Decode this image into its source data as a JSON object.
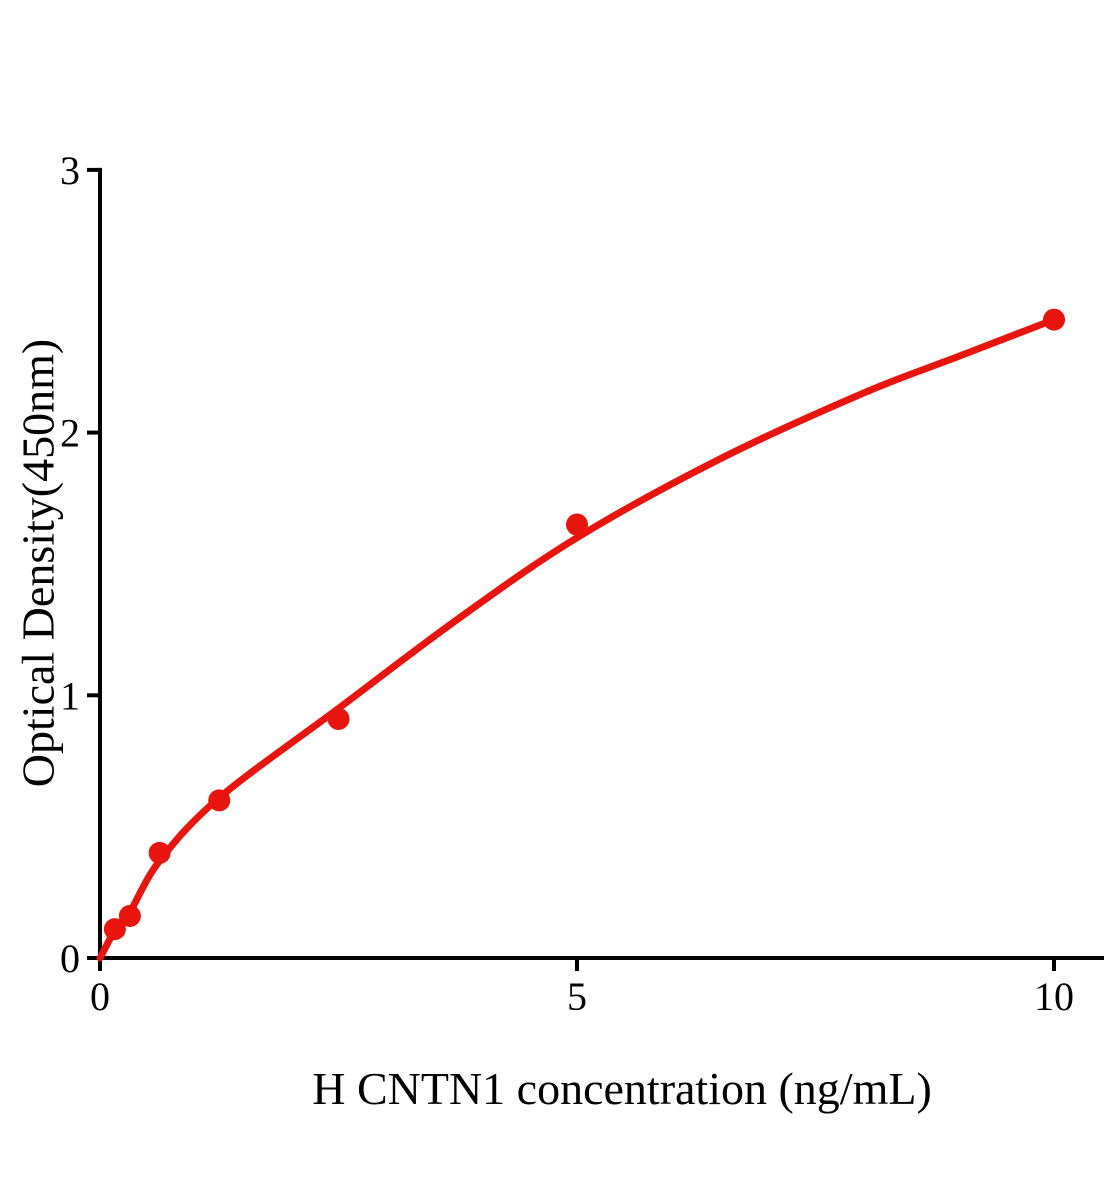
{
  "figure": {
    "background_color": "#ffffff",
    "text_color": "#000000"
  },
  "chart_data": {
    "type": "scatter",
    "title": "",
    "xlabel": "H CNTN1 concentration (ng/mL)",
    "ylabel": "Optical Density(450nm)",
    "xlim": [
      0,
      10.55
    ],
    "ylim": [
      0,
      3
    ],
    "x_ticks": [
      0,
      5,
      10
    ],
    "y_ticks": [
      0,
      1,
      2,
      3
    ],
    "grid": false,
    "legend_position": "none",
    "axis_color": "#000000",
    "accent_color": "#e8150e",
    "series": [
      {
        "name": "standard-points",
        "type": "scatter",
        "color": "#e8150e",
        "x": [
          0.156,
          0.313,
          0.625,
          1.25,
          2.5,
          5,
          10
        ],
        "y": [
          0.11,
          0.16,
          0.4,
          0.6,
          0.91,
          1.65,
          2.43
        ]
      },
      {
        "name": "fitted-curve",
        "type": "line",
        "color": "#e8150e",
        "x": [
          0,
          0.156,
          0.313,
          0.625,
          1.25,
          2.5,
          3.75,
          5,
          6.5,
          8,
          9,
          10
        ],
        "y": [
          0,
          0.105,
          0.175,
          0.37,
          0.61,
          0.95,
          1.29,
          1.6,
          1.9,
          2.15,
          2.29,
          2.43
        ]
      }
    ]
  }
}
